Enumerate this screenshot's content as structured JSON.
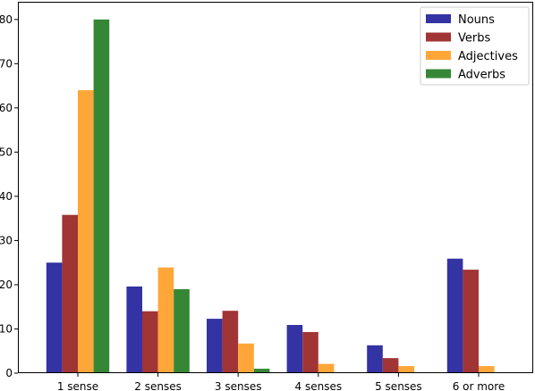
{
  "chart_data": {
    "type": "bar",
    "title": "",
    "xlabel": "",
    "ylabel": "",
    "categories": [
      "1 sense",
      "2 senses",
      "3 senses",
      "4 senses",
      "5 senses",
      "6 or more"
    ],
    "series": [
      {
        "name": "Nouns",
        "color": "#3333a3",
        "values": [
          25,
          19.6,
          12.3,
          10.9,
          6.3,
          25.9
        ]
      },
      {
        "name": "Verbs",
        "color": "#a13434",
        "values": [
          35.8,
          14,
          14.1,
          9.3,
          3.4,
          23.4
        ]
      },
      {
        "name": "Adjectives",
        "color": "#ffa639",
        "values": [
          64,
          23.9,
          6.7,
          2.1,
          1.6,
          1.6
        ]
      },
      {
        "name": "Adverbs",
        "color": "#358735",
        "values": [
          80,
          19,
          1,
          0,
          0,
          0
        ]
      }
    ],
    "ylim": [
      0,
      84
    ],
    "yticks": [
      "0",
      "10",
      "20",
      "30",
      "40",
      "50",
      "60",
      "70",
      "80"
    ],
    "grid": false,
    "legend": "top-right"
  }
}
